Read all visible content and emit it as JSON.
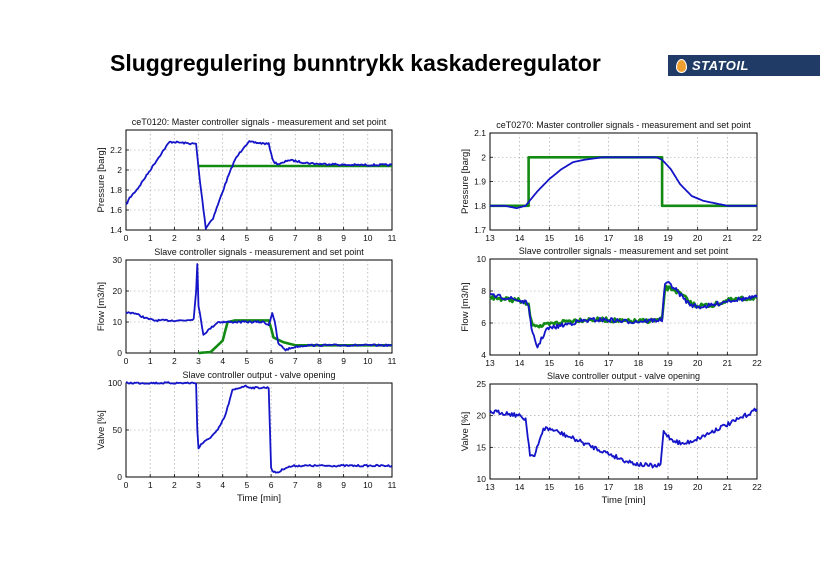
{
  "slide": {
    "title": "Sluggregulering bunntrykk kaskaderegulator",
    "logo_text": "STATOIL"
  },
  "colors": {
    "measurement": "#1414c8",
    "setpoint": "#138a13",
    "logo_bg": "#1f3b66"
  },
  "chart_data": [
    {
      "id": "L1",
      "type": "line",
      "title": "ceT0120: Master controller signals - measurement and set point",
      "xlabel": "",
      "ylabel": "Pressure [barg]",
      "xlim": [
        0,
        11
      ],
      "ylim": [
        1.4,
        2.4
      ],
      "xticks": [
        0,
        1,
        2,
        3,
        4,
        5,
        6,
        7,
        8,
        9,
        10,
        11
      ],
      "xtick_labels": [
        "0",
        "1",
        "2",
        "3",
        "4",
        "5",
        "6",
        "7",
        "8",
        "9",
        "10",
        "11"
      ],
      "yticks": [
        1.4,
        1.6,
        1.8,
        2,
        2.2
      ],
      "ytick_labels": [
        "1.4",
        "1.6",
        "1.8",
        "2",
        "2.2"
      ],
      "series": [
        {
          "role": "measurement",
          "x": [
            0,
            0.15,
            0.5,
            1,
            1.5,
            1.8,
            2,
            2.4,
            2.9,
            3.05,
            3.3,
            3.6,
            3.9,
            4.2,
            4.5,
            4.9,
            5.1,
            5.5,
            5.9,
            6.1,
            6.3,
            6.5,
            6.7,
            7,
            7.5,
            8,
            8.5,
            9,
            10,
            11
          ],
          "y": [
            1.65,
            1.72,
            1.82,
            2.0,
            2.18,
            2.28,
            2.28,
            2.27,
            2.26,
            1.9,
            1.42,
            1.52,
            1.72,
            1.92,
            2.1,
            2.24,
            2.28,
            2.27,
            2.26,
            2.08,
            2.06,
            2.07,
            2.1,
            2.09,
            2.07,
            2.06,
            2.06,
            2.05,
            2.05,
            2.05
          ]
        },
        {
          "role": "setpoint",
          "x": [
            3,
            11
          ],
          "y": [
            2.04,
            2.04
          ]
        }
      ]
    },
    {
      "id": "L2",
      "type": "line",
      "title": "Slave controller signals - measurement and set point",
      "xlabel": "",
      "ylabel": "Flow [m3/h]",
      "xlim": [
        0,
        11
      ],
      "ylim": [
        0,
        30
      ],
      "xticks": [
        0,
        1,
        2,
        3,
        4,
        5,
        6,
        7,
        8,
        9,
        10,
        11
      ],
      "xtick_labels": [
        "0",
        "1",
        "2",
        "3",
        "4",
        "5",
        "6",
        "7",
        "8",
        "9",
        "10",
        "11"
      ],
      "yticks": [
        0,
        10,
        20,
        30
      ],
      "ytick_labels": [
        "0",
        "10",
        "20",
        "30"
      ],
      "series": [
        {
          "role": "measurement",
          "x": [
            0,
            0.3,
            0.6,
            0.9,
            1.2,
            1.6,
            2,
            2.4,
            2.8,
            2.9,
            2.95,
            3.0,
            3.2,
            3.5,
            3.8,
            4.2,
            4.6,
            5,
            5.4,
            5.7,
            5.9,
            6.05,
            6.15,
            6.3,
            6.6,
            7,
            7.5,
            8,
            9,
            10,
            11
          ],
          "y": [
            13,
            13,
            12,
            11,
            10.5,
            10.5,
            10.5,
            10.5,
            11,
            20,
            29,
            15,
            6,
            8,
            10,
            10,
            10,
            10,
            10,
            10,
            9,
            13,
            10,
            3,
            1,
            2,
            2.5,
            2.5,
            2.5,
            2.5,
            2.5
          ]
        },
        {
          "role": "setpoint",
          "x": [
            3,
            3.5,
            4,
            4.2,
            4.5,
            5,
            5.5,
            5.9,
            6.0,
            6.1,
            6.5,
            7,
            7.5,
            8,
            9,
            10,
            11
          ],
          "y": [
            0,
            0.3,
            4,
            10,
            10.5,
            10.5,
            10.5,
            10.5,
            8,
            5,
            3.5,
            2.5,
            2.5,
            2.5,
            2.5,
            2.5,
            2.5
          ]
        }
      ]
    },
    {
      "id": "L3",
      "type": "line",
      "title": "Slave controller output - valve opening",
      "xlabel": "Time [min]",
      "ylabel": "Valve [%]",
      "xlim": [
        0,
        11
      ],
      "ylim": [
        0,
        100
      ],
      "xticks": [
        0,
        1,
        2,
        3,
        4,
        5,
        6,
        7,
        8,
        9,
        10,
        11
      ],
      "xtick_labels": [
        "0",
        "1",
        "2",
        "3",
        "4",
        "5",
        "6",
        "7",
        "8",
        "9",
        "10",
        "11"
      ],
      "yticks": [
        0,
        50,
        100
      ],
      "ytick_labels": [
        "0",
        "50",
        "100"
      ],
      "series": [
        {
          "role": "measurement",
          "x": [
            0,
            1,
            2,
            2.9,
            2.95,
            3.0,
            3.1,
            3.4,
            3.8,
            4.1,
            4.4,
            4.9,
            5.2,
            5.9,
            6.0,
            6.1,
            6.3,
            6.6,
            7,
            7.5,
            8,
            9,
            10,
            11
          ],
          "y": [
            100,
            100,
            100,
            100,
            50,
            30,
            35,
            40,
            50,
            65,
            92,
            97,
            95,
            95,
            10,
            5,
            5,
            10,
            12,
            12,
            12,
            12,
            12,
            12
          ]
        }
      ]
    },
    {
      "id": "R1",
      "type": "line",
      "title": "ceT0270: Master controller signals - measurement and set point",
      "xlabel": "",
      "ylabel": "Pressure [barg]",
      "xlim": [
        13,
        22
      ],
      "ylim": [
        1.7,
        2.1
      ],
      "xticks": [
        13,
        14,
        15,
        16,
        17,
        18,
        19,
        20,
        21,
        22
      ],
      "xtick_labels": [
        "13",
        "14",
        "15",
        "16",
        "17",
        "18",
        "19",
        "20",
        "21",
        "22"
      ],
      "yticks": [
        1.7,
        1.8,
        1.9,
        2,
        2.1
      ],
      "ytick_labels": [
        "1.7",
        "1.8",
        "1.9",
        "2",
        "2.1"
      ],
      "series": [
        {
          "role": "measurement",
          "x": [
            13,
            13.5,
            13.9,
            14.2,
            14.6,
            15,
            15.4,
            15.8,
            16.2,
            16.8,
            17.5,
            18,
            18.6,
            18.8,
            19.1,
            19.4,
            19.8,
            20.2,
            20.6,
            21,
            21.5,
            22
          ],
          "y": [
            1.8,
            1.8,
            1.79,
            1.8,
            1.86,
            1.91,
            1.95,
            1.98,
            1.99,
            2.0,
            2.0,
            2.0,
            2.0,
            1.99,
            1.95,
            1.89,
            1.84,
            1.82,
            1.81,
            1.8,
            1.8,
            1.8
          ]
        },
        {
          "role": "setpoint",
          "x": [
            13,
            14.3,
            14.3,
            18.8,
            18.8,
            22
          ],
          "y": [
            1.8,
            1.8,
            2,
            2,
            1.8,
            1.8
          ]
        }
      ]
    },
    {
      "id": "R2",
      "type": "line",
      "title": "Slave controller signals - measurement and set point",
      "xlabel": "",
      "ylabel": "Flow [m3/h]",
      "xlim": [
        13,
        22
      ],
      "ylim": [
        4,
        10
      ],
      "xticks": [
        13,
        14,
        15,
        16,
        17,
        18,
        19,
        20,
        21,
        22
      ],
      "xtick_labels": [
        "13",
        "14",
        "15",
        "16",
        "17",
        "18",
        "19",
        "20",
        "21",
        "22"
      ],
      "yticks": [
        4,
        6,
        8,
        10
      ],
      "ytick_labels": [
        "4",
        "6",
        "8",
        "10"
      ],
      "series": [
        {
          "role": "measurement",
          "x": [
            13,
            13.5,
            14,
            14.3,
            14.4,
            14.6,
            14.9,
            15.3,
            16,
            16.5,
            17,
            17.5,
            18,
            18.8,
            18.9,
            19.1,
            19.4,
            19.7,
            20,
            20.5,
            21,
            21.5,
            22
          ],
          "y": [
            7.7,
            7.6,
            7.4,
            7.2,
            5.5,
            4.5,
            5.6,
            5.8,
            6.1,
            6.2,
            6.2,
            6.1,
            6.1,
            6.2,
            8.5,
            8.4,
            7.8,
            7.2,
            7.0,
            7.1,
            7.4,
            7.5,
            7.6
          ]
        },
        {
          "role": "setpoint",
          "x": [
            13,
            13.5,
            14,
            14.3,
            14.4,
            14.7,
            15,
            15.5,
            16,
            16.5,
            17,
            17.5,
            18,
            18.8,
            18.9,
            19.2,
            19.5,
            19.8,
            20,
            20.5,
            21,
            21.5,
            22
          ],
          "y": [
            7.6,
            7.5,
            7.4,
            7.1,
            6.0,
            5.8,
            5.9,
            6.1,
            6.2,
            6.2,
            6.2,
            6.1,
            6.1,
            6.2,
            8.2,
            8.1,
            7.7,
            7.2,
            7.1,
            7.1,
            7.4,
            7.5,
            7.6
          ]
        }
      ]
    },
    {
      "id": "R3",
      "type": "line",
      "title": "Slave controller output - valve opening",
      "xlabel": "Time [min]",
      "ylabel": "Valve [%]",
      "xlim": [
        13,
        22
      ],
      "ylim": [
        10,
        25
      ],
      "xticks": [
        13,
        14,
        15,
        16,
        17,
        18,
        19,
        20,
        21,
        22
      ],
      "xtick_labels": [
        "13",
        "14",
        "15",
        "16",
        "17",
        "18",
        "19",
        "20",
        "21",
        "22"
      ],
      "yticks": [
        10,
        15,
        20,
        25
      ],
      "ytick_labels": [
        "10",
        "15",
        "20",
        "25"
      ],
      "series": [
        {
          "role": "measurement",
          "x": [
            13,
            13.4,
            13.9,
            14.2,
            14.35,
            14.5,
            14.8,
            15.1,
            15.5,
            16,
            16.5,
            17,
            17.5,
            18,
            18.6,
            18.75,
            18.85,
            19.1,
            19.5,
            19.8,
            20.2,
            20.7,
            21.2,
            21.6,
            22
          ],
          "y": [
            20.6,
            20.5,
            20.1,
            19.5,
            14,
            13.5,
            18,
            17.8,
            17,
            16,
            15,
            14,
            13,
            12.3,
            12.0,
            12.2,
            17.5,
            16.3,
            15.5,
            16.0,
            16.8,
            18,
            19,
            20,
            21
          ]
        }
      ]
    }
  ]
}
